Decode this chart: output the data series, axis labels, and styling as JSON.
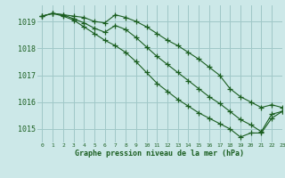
{
  "title": "Graphe pression niveau de la mer (hPa)",
  "bg_color": "#cce8e8",
  "grid_color": "#a0c8c8",
  "line_color": "#1a5e20",
  "xlim": [
    -0.5,
    23
  ],
  "ylim": [
    1014.5,
    1019.6
  ],
  "yticks": [
    1015,
    1016,
    1017,
    1018,
    1019
  ],
  "xticks": [
    0,
    1,
    2,
    3,
    4,
    5,
    6,
    7,
    8,
    9,
    10,
    11,
    12,
    13,
    14,
    15,
    16,
    17,
    18,
    19,
    20,
    21,
    22,
    23
  ],
  "series1_x": [
    0,
    1,
    2,
    3,
    4,
    5,
    6,
    7,
    8,
    9,
    10,
    11,
    12,
    13,
    14,
    15,
    16,
    17,
    18,
    19,
    20,
    21,
    22,
    23
  ],
  "series1_y": [
    1019.2,
    1019.3,
    1019.25,
    1019.2,
    1019.15,
    1019.0,
    1018.95,
    1019.25,
    1019.15,
    1019.0,
    1018.8,
    1018.55,
    1018.3,
    1018.1,
    1017.85,
    1017.6,
    1017.3,
    1017.0,
    1016.5,
    1016.2,
    1016.0,
    1015.8,
    1015.9,
    1015.8
  ],
  "series2_x": [
    0,
    1,
    2,
    3,
    4,
    5,
    6,
    7,
    8,
    9,
    10,
    11,
    12,
    13,
    14,
    15,
    16,
    17,
    18,
    19,
    20,
    21,
    22,
    23
  ],
  "series2_y": [
    1019.2,
    1019.3,
    1019.25,
    1019.1,
    1018.95,
    1018.75,
    1018.6,
    1018.85,
    1018.7,
    1018.4,
    1018.05,
    1017.7,
    1017.4,
    1017.1,
    1016.8,
    1016.5,
    1016.2,
    1015.95,
    1015.65,
    1015.35,
    1015.15,
    1014.9,
    1015.55,
    1015.65
  ],
  "series3_x": [
    0,
    1,
    2,
    3,
    4,
    5,
    6,
    7,
    8,
    9,
    10,
    11,
    12,
    13,
    14,
    15,
    16,
    17,
    18,
    19,
    20,
    21,
    22,
    23
  ],
  "series3_y": [
    1019.2,
    1019.3,
    1019.2,
    1019.05,
    1018.8,
    1018.55,
    1018.3,
    1018.1,
    1017.85,
    1017.5,
    1017.1,
    1016.7,
    1016.4,
    1016.1,
    1015.85,
    1015.6,
    1015.4,
    1015.2,
    1015.0,
    1014.7,
    1014.85,
    1014.85,
    1015.4,
    1015.65
  ]
}
